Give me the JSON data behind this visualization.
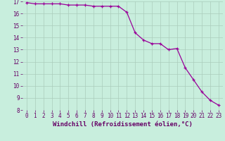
{
  "x": [
    0,
    1,
    2,
    3,
    4,
    5,
    6,
    7,
    8,
    9,
    10,
    11,
    12,
    13,
    14,
    15,
    16,
    17,
    18,
    19,
    20,
    21,
    22,
    23
  ],
  "y": [
    16.9,
    16.8,
    16.8,
    16.8,
    16.8,
    16.7,
    16.7,
    16.7,
    16.6,
    16.6,
    16.6,
    16.6,
    16.1,
    14.4,
    13.8,
    13.5,
    13.5,
    13.0,
    13.1,
    11.5,
    10.5,
    9.5,
    8.8,
    8.4
  ],
  "line_color": "#990099",
  "marker": "+",
  "marker_size": 3,
  "background_color": "#c8eedd",
  "grid_color": "#aaccbb",
  "xlabel": "Windchill (Refroidissement éolien,°C)",
  "xlabel_color": "#660066",
  "tick_color": "#660066",
  "ylim": [
    8,
    17
  ],
  "xlim": [
    -0.5,
    23.5
  ],
  "yticks": [
    8,
    9,
    10,
    11,
    12,
    13,
    14,
    15,
    16,
    17
  ],
  "xticks": [
    0,
    1,
    2,
    3,
    4,
    5,
    6,
    7,
    8,
    9,
    10,
    11,
    12,
    13,
    14,
    15,
    16,
    17,
    18,
    19,
    20,
    21,
    22,
    23
  ],
  "tick_fontsize": 5.5,
  "xlabel_fontsize": 6.5
}
